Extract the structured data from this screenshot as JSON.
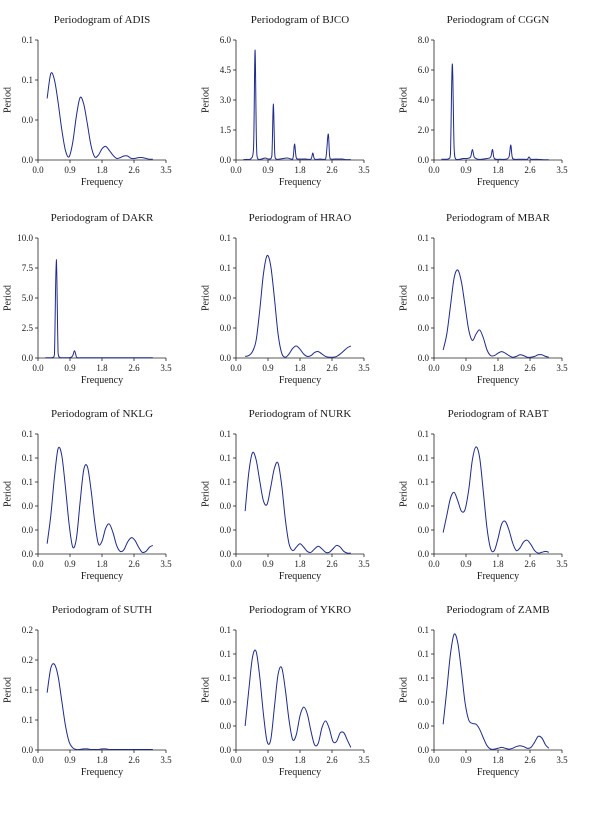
{
  "chart_data": [
    {
      "type": "line",
      "title": "Periodogram of ADIS",
      "xlabel": "Frequency",
      "ylabel": "Period",
      "xticks": [
        "0.0",
        "0.9",
        "1.8",
        "2.6",
        "3.5"
      ],
      "yticks": [
        "0.0",
        "0.0",
        "0.1",
        "0.1"
      ],
      "xlim": [
        0,
        3.5
      ],
      "ylim": [
        0,
        0.15
      ],
      "color": "#1f2a8a",
      "series": [
        {
          "x": [
            0.25,
            0.35,
            0.45,
            0.55,
            0.65,
            0.75,
            0.85,
            0.95,
            1.05,
            1.15,
            1.25,
            1.35,
            1.45,
            1.55,
            1.65,
            1.75,
            1.85,
            1.95,
            2.05,
            2.15,
            2.25,
            2.35,
            2.45,
            2.55,
            2.65,
            2.75,
            2.85,
            2.95,
            3.05,
            3.14
          ],
          "y": [
            0.077,
            0.108,
            0.1,
            0.072,
            0.038,
            0.012,
            0.004,
            0.022,
            0.055,
            0.078,
            0.07,
            0.045,
            0.018,
            0.004,
            0.006,
            0.014,
            0.017,
            0.012,
            0.006,
            0.002,
            0.003,
            0.005,
            0.005,
            0.002,
            0.002,
            0.003,
            0.003,
            0.002,
            0.001,
            0.001
          ]
        }
      ]
    },
    {
      "type": "line",
      "title": "Periodogram of BJCO",
      "xlabel": "Frequency",
      "ylabel": "Period",
      "xticks": [
        "0.0",
        "0.9",
        "1.8",
        "2.6",
        "3.5"
      ],
      "yticks": [
        "0.0",
        "1.5",
        "3.0",
        "4.5",
        "6.0"
      ],
      "xlim": [
        0,
        3.5
      ],
      "ylim": [
        0,
        6
      ],
      "color": "#1f2a8a",
      "series": [
        {
          "x": [
            0.2,
            0.3,
            0.4,
            0.48,
            0.52,
            0.56,
            0.6,
            0.7,
            0.8,
            0.9,
            0.98,
            1.02,
            1.06,
            1.1,
            1.2,
            1.4,
            1.55,
            1.6,
            1.65,
            1.75,
            1.9,
            2.05,
            2.1,
            2.15,
            2.3,
            2.45,
            2.52,
            2.56,
            2.6,
            2.7,
            2.8,
            2.9,
            3.0,
            3.14
          ],
          "y": [
            0.02,
            0.03,
            0.05,
            0.6,
            5.5,
            0.8,
            0.05,
            0.05,
            0.1,
            0.05,
            0.2,
            2.8,
            0.3,
            0.05,
            0.05,
            0.1,
            0.05,
            0.8,
            0.1,
            0.05,
            0.05,
            0.05,
            0.35,
            0.05,
            0.05,
            0.05,
            1.3,
            0.2,
            0.05,
            0.05,
            0.05,
            0.05,
            0.02,
            0.02
          ]
        }
      ]
    },
    {
      "type": "line",
      "title": "Periodogram of CGGN",
      "xlabel": "Frequency",
      "ylabel": "Period",
      "xticks": [
        "0.0",
        "0.9",
        "1.8",
        "2.6",
        "3.5"
      ],
      "yticks": [
        "0.0",
        "2.0",
        "4.0",
        "6.0",
        "8.0"
      ],
      "xlim": [
        0,
        3.5
      ],
      "ylim": [
        0,
        8
      ],
      "color": "#1f2a8a",
      "series": [
        {
          "x": [
            0.2,
            0.3,
            0.4,
            0.45,
            0.5,
            0.55,
            0.6,
            0.7,
            0.8,
            0.9,
            1.0,
            1.05,
            1.1,
            1.2,
            1.3,
            1.45,
            1.55,
            1.6,
            1.65,
            1.8,
            1.95,
            2.05,
            2.1,
            2.15,
            2.3,
            2.45,
            2.55,
            2.6,
            2.65,
            2.8,
            3.0,
            3.14
          ],
          "y": [
            0.05,
            0.05,
            0.08,
            0.4,
            6.4,
            0.8,
            0.05,
            0.05,
            0.1,
            0.1,
            0.2,
            0.7,
            0.2,
            0.05,
            0.05,
            0.1,
            0.2,
            0.7,
            0.1,
            0.05,
            0.05,
            0.2,
            1.0,
            0.1,
            0.05,
            0.05,
            0.05,
            0.2,
            0.05,
            0.05,
            0.02,
            0.02
          ]
        }
      ]
    },
    {
      "type": "line",
      "title": "Periodogram of DAKR",
      "xlabel": "Frequency",
      "ylabel": "Period",
      "xticks": [
        "0.0",
        "0.9",
        "1.8",
        "2.6",
        "3.5"
      ],
      "yticks": [
        "0.0",
        "2.5",
        "5.0",
        "7.5",
        "10.0"
      ],
      "xlim": [
        0,
        3.5
      ],
      "ylim": [
        0,
        10
      ],
      "color": "#1f2a8a",
      "series": [
        {
          "x": [
            0.2,
            0.3,
            0.4,
            0.45,
            0.5,
            0.55,
            0.6,
            0.7,
            0.8,
            0.9,
            0.95,
            1.0,
            1.05,
            1.1,
            1.2,
            1.4,
            1.6,
            1.8,
            2.0,
            2.2,
            2.4,
            2.6,
            2.8,
            3.0,
            3.14
          ],
          "y": [
            0.02,
            0.02,
            0.05,
            0.3,
            8.2,
            0.4,
            0.05,
            0.02,
            0.02,
            0.05,
            0.2,
            0.6,
            0.1,
            0.02,
            0.02,
            0.02,
            0.02,
            0.02,
            0.02,
            0.02,
            0.02,
            0.02,
            0.02,
            0.02,
            0.02
          ]
        }
      ]
    },
    {
      "type": "line",
      "title": "Periodogram of HRAO",
      "xlabel": "Frequency",
      "ylabel": "Period",
      "xticks": [
        "0.0",
        "0.9",
        "1.8",
        "2.6",
        "3.5"
      ],
      "yticks": [
        "0.0",
        "0.0",
        "0.0",
        "0.1",
        "0.1"
      ],
      "xlim": [
        0,
        3.5
      ],
      "ylim": [
        0,
        0.15
      ],
      "color": "#1f2a8a",
      "series": [
        {
          "x": [
            0.25,
            0.35,
            0.45,
            0.55,
            0.65,
            0.75,
            0.85,
            0.95,
            1.05,
            1.15,
            1.25,
            1.35,
            1.45,
            1.55,
            1.65,
            1.75,
            1.85,
            1.95,
            2.05,
            2.15,
            2.25,
            2.35,
            2.45,
            2.55,
            2.65,
            2.75,
            2.85,
            2.95,
            3.05,
            3.14
          ],
          "y": [
            0.002,
            0.003,
            0.008,
            0.022,
            0.06,
            0.105,
            0.128,
            0.115,
            0.075,
            0.03,
            0.006,
            0.001,
            0.005,
            0.012,
            0.015,
            0.011,
            0.005,
            0.002,
            0.003,
            0.007,
            0.008,
            0.005,
            0.002,
            0.001,
            0.001,
            0.002,
            0.005,
            0.009,
            0.013,
            0.015
          ]
        }
      ]
    },
    {
      "type": "line",
      "title": "Periodogram of MBAR",
      "xlabel": "Frequency",
      "ylabel": "Period",
      "xticks": [
        "0.0",
        "0.9",
        "1.8",
        "2.6",
        "3.5"
      ],
      "yticks": [
        "0.0",
        "0.0",
        "0.0",
        "0.1",
        "0.1"
      ],
      "xlim": [
        0,
        3.5
      ],
      "ylim": [
        0,
        0.15
      ],
      "color": "#1f2a8a",
      "series": [
        {
          "x": [
            0.25,
            0.35,
            0.45,
            0.55,
            0.65,
            0.75,
            0.85,
            0.95,
            1.05,
            1.15,
            1.25,
            1.35,
            1.45,
            1.55,
            1.65,
            1.75,
            1.85,
            1.95,
            2.05,
            2.15,
            2.25,
            2.35,
            2.45,
            2.55,
            2.65,
            2.75,
            2.85,
            2.95,
            3.05,
            3.14
          ],
          "y": [
            0.01,
            0.03,
            0.065,
            0.1,
            0.11,
            0.095,
            0.065,
            0.035,
            0.022,
            0.03,
            0.035,
            0.025,
            0.01,
            0.003,
            0.003,
            0.006,
            0.008,
            0.006,
            0.003,
            0.001,
            0.002,
            0.004,
            0.003,
            0.001,
            0.001,
            0.002,
            0.004,
            0.004,
            0.002,
            0.001
          ]
        }
      ]
    },
    {
      "type": "line",
      "title": "Periodogram of NKLG",
      "xlabel": "Frequency",
      "ylabel": "Period",
      "xticks": [
        "0.0",
        "0.9",
        "1.8",
        "2.6",
        "3.5"
      ],
      "yticks": [
        "0.0",
        "0.0",
        "0.0",
        "0.1",
        "0.1",
        "0.1"
      ],
      "xlim": [
        0,
        3.5
      ],
      "ylim": [
        0,
        0.14
      ],
      "color": "#1f2a8a",
      "series": [
        {
          "x": [
            0.25,
            0.35,
            0.45,
            0.55,
            0.65,
            0.75,
            0.85,
            0.95,
            1.05,
            1.15,
            1.25,
            1.35,
            1.45,
            1.55,
            1.65,
            1.75,
            1.85,
            1.95,
            2.05,
            2.15,
            2.25,
            2.35,
            2.45,
            2.55,
            2.65,
            2.75,
            2.85,
            2.95,
            3.05,
            3.14
          ],
          "y": [
            0.012,
            0.045,
            0.09,
            0.123,
            0.115,
            0.078,
            0.035,
            0.008,
            0.018,
            0.06,
            0.098,
            0.102,
            0.075,
            0.038,
            0.012,
            0.015,
            0.03,
            0.035,
            0.025,
            0.01,
            0.003,
            0.005,
            0.014,
            0.019,
            0.016,
            0.008,
            0.002,
            0.003,
            0.008,
            0.01
          ]
        }
      ]
    },
    {
      "type": "line",
      "title": "Periodogram of NURK",
      "xlabel": "Frequency",
      "ylabel": "Period",
      "xticks": [
        "0.0",
        "0.9",
        "1.8",
        "2.6",
        "3.5"
      ],
      "yticks": [
        "0.0",
        "0.0",
        "0.0",
        "0.1",
        "0.1",
        "0.1"
      ],
      "xlim": [
        0,
        3.5
      ],
      "ylim": [
        0,
        0.14
      ],
      "color": "#1f2a8a",
      "series": [
        {
          "x": [
            0.25,
            0.35,
            0.45,
            0.55,
            0.65,
            0.75,
            0.85,
            0.95,
            1.05,
            1.15,
            1.25,
            1.35,
            1.45,
            1.55,
            1.65,
            1.75,
            1.85,
            1.95,
            2.05,
            2.15,
            2.25,
            2.35,
            2.45,
            2.55,
            2.65,
            2.75,
            2.85,
            2.95,
            3.05,
            3.14
          ],
          "y": [
            0.05,
            0.095,
            0.118,
            0.11,
            0.085,
            0.062,
            0.058,
            0.078,
            0.1,
            0.106,
            0.08,
            0.04,
            0.012,
            0.004,
            0.008,
            0.012,
            0.008,
            0.003,
            0.002,
            0.006,
            0.009,
            0.006,
            0.002,
            0.002,
            0.006,
            0.01,
            0.008,
            0.003,
            0.001,
            0.001
          ]
        }
      ]
    },
    {
      "type": "line",
      "title": "Periodogram of RABT",
      "xlabel": "Frequency",
      "ylabel": "Period",
      "xticks": [
        "0.0",
        "0.9",
        "1.8",
        "2.6",
        "3.5"
      ],
      "yticks": [
        "0.0",
        "0.0",
        "0.0",
        "0.1",
        "0.1",
        "0.1"
      ],
      "xlim": [
        0,
        3.5
      ],
      "ylim": [
        0,
        0.14
      ],
      "color": "#1f2a8a",
      "series": [
        {
          "x": [
            0.25,
            0.35,
            0.45,
            0.55,
            0.65,
            0.75,
            0.85,
            0.95,
            1.05,
            1.15,
            1.25,
            1.35,
            1.45,
            1.55,
            1.65,
            1.75,
            1.85,
            1.95,
            2.05,
            2.15,
            2.25,
            2.35,
            2.45,
            2.55,
            2.65,
            2.75,
            2.85,
            2.95,
            3.05,
            3.14
          ],
          "y": [
            0.025,
            0.045,
            0.065,
            0.072,
            0.062,
            0.05,
            0.052,
            0.075,
            0.11,
            0.125,
            0.112,
            0.072,
            0.03,
            0.006,
            0.004,
            0.018,
            0.035,
            0.038,
            0.028,
            0.013,
            0.004,
            0.007,
            0.014,
            0.016,
            0.011,
            0.004,
            0.001,
            0.002,
            0.003,
            0.002
          ]
        }
      ]
    },
    {
      "type": "line",
      "title": "Periodogram of SUTH",
      "xlabel": "Frequency",
      "ylabel": "Period",
      "xticks": [
        "0.0",
        "0.9",
        "1.8",
        "2.6",
        "3.5"
      ],
      "yticks": [
        "0.0",
        "0.1",
        "0.1",
        "0.2",
        "0.2"
      ],
      "xlim": [
        0,
        3.5
      ],
      "ylim": [
        0,
        0.22
      ],
      "color": "#1f2a8a",
      "series": [
        {
          "x": [
            0.25,
            0.35,
            0.45,
            0.55,
            0.65,
            0.75,
            0.85,
            0.95,
            1.05,
            1.15,
            1.25,
            1.35,
            1.45,
            1.55,
            1.65,
            1.75,
            1.85,
            1.95,
            2.05,
            2.15,
            2.25,
            2.35,
            2.45,
            2.55,
            2.65,
            2.75,
            2.85,
            2.95,
            3.05,
            3.14
          ],
          "y": [
            0.105,
            0.15,
            0.157,
            0.135,
            0.09,
            0.045,
            0.015,
            0.004,
            0.001,
            0.001,
            0.002,
            0.002,
            0.001,
            0.001,
            0.001,
            0.002,
            0.002,
            0.001,
            0.001,
            0.001,
            0.001,
            0.001,
            0.001,
            0.001,
            0.001,
            0.001,
            0.001,
            0.001,
            0.001,
            0.001
          ]
        }
      ]
    },
    {
      "type": "line",
      "title": "Periodogram of YKRO",
      "xlabel": "Frequency",
      "ylabel": "Period",
      "xticks": [
        "0.0",
        "0.9",
        "1.8",
        "2.6",
        "3.5"
      ],
      "yticks": [
        "0.0",
        "0.0",
        "0.0",
        "0.1",
        "0.1",
        "0.1"
      ],
      "xlim": [
        0,
        3.5
      ],
      "ylim": [
        0,
        0.14
      ],
      "color": "#1f2a8a",
      "series": [
        {
          "x": [
            0.25,
            0.35,
            0.45,
            0.55,
            0.65,
            0.75,
            0.85,
            0.95,
            1.05,
            1.15,
            1.25,
            1.35,
            1.45,
            1.55,
            1.65,
            1.75,
            1.85,
            1.95,
            2.05,
            2.15,
            2.25,
            2.35,
            2.45,
            2.55,
            2.65,
            2.75,
            2.85,
            2.95,
            3.05,
            3.14
          ],
          "y": [
            0.028,
            0.07,
            0.108,
            0.115,
            0.085,
            0.042,
            0.01,
            0.012,
            0.05,
            0.088,
            0.096,
            0.07,
            0.035,
            0.012,
            0.018,
            0.04,
            0.05,
            0.042,
            0.022,
            0.006,
            0.008,
            0.026,
            0.034,
            0.025,
            0.01,
            0.01,
            0.02,
            0.02,
            0.011,
            0.003
          ]
        }
      ]
    },
    {
      "type": "line",
      "title": "Periodogram of ZAMB",
      "xlabel": "Frequency",
      "ylabel": "Period",
      "xticks": [
        "0.0",
        "0.9",
        "1.8",
        "2.6",
        "3.5"
      ],
      "yticks": [
        "0.0",
        "0.0",
        "0.0",
        "0.1",
        "0.1",
        "0.1"
      ],
      "xlim": [
        0,
        3.5
      ],
      "ylim": [
        0,
        0.14
      ],
      "color": "#1f2a8a",
      "series": [
        {
          "x": [
            0.25,
            0.35,
            0.45,
            0.55,
            0.65,
            0.75,
            0.85,
            0.95,
            1.05,
            1.15,
            1.25,
            1.35,
            1.45,
            1.55,
            1.65,
            1.75,
            1.85,
            1.95,
            2.05,
            2.15,
            2.25,
            2.35,
            2.45,
            2.55,
            2.65,
            2.75,
            2.85,
            2.95,
            3.05,
            3.14
          ],
          "y": [
            0.03,
            0.07,
            0.112,
            0.135,
            0.125,
            0.092,
            0.055,
            0.035,
            0.031,
            0.03,
            0.024,
            0.014,
            0.005,
            0.001,
            0.001,
            0.002,
            0.003,
            0.002,
            0.001,
            0.002,
            0.004,
            0.005,
            0.004,
            0.002,
            0.003,
            0.009,
            0.016,
            0.014,
            0.006,
            0.002
          ]
        }
      ]
    }
  ]
}
